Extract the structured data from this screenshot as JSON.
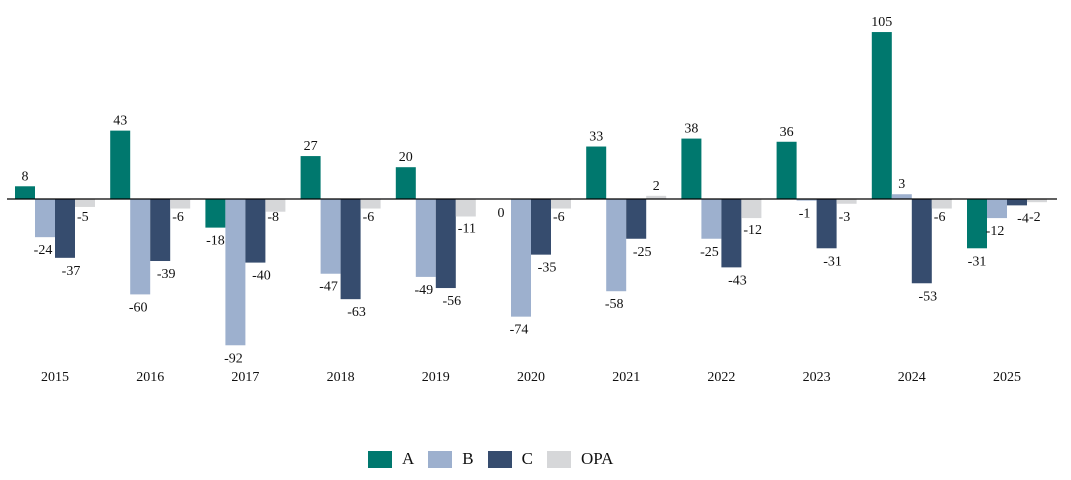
{
  "chart_data": {
    "type": "bar",
    "title": "",
    "xlabel": "",
    "ylabel": "",
    "categories": [
      "2015",
      "2016",
      "2017",
      "2018",
      "2019",
      "2020",
      "2021",
      "2022",
      "2023",
      "2024",
      "2025"
    ],
    "series": [
      {
        "name": "A",
        "color": "#00786e",
        "values": [
          8,
          43,
          -18,
          27,
          20,
          0,
          33,
          38,
          36,
          105,
          -31
        ]
      },
      {
        "name": "B",
        "color": "#9db0ce",
        "values": [
          -24,
          -60,
          -92,
          -47,
          -49,
          -74,
          -58,
          -25,
          -1,
          3,
          -12
        ]
      },
      {
        "name": "C",
        "color": "#364c6e",
        "values": [
          -37,
          -39,
          -40,
          -63,
          -56,
          -35,
          -25,
          -43,
          -31,
          -53,
          -4
        ]
      },
      {
        "name": "OPA",
        "color": "#d6d7d9",
        "values": [
          -5,
          -6,
          -8,
          -6,
          -11,
          -6,
          2,
          -12,
          -3,
          -6,
          -2
        ]
      }
    ],
    "ylim": [
      -92,
      105
    ],
    "grid": false,
    "data_labels": true,
    "legend": "bottom-center"
  }
}
